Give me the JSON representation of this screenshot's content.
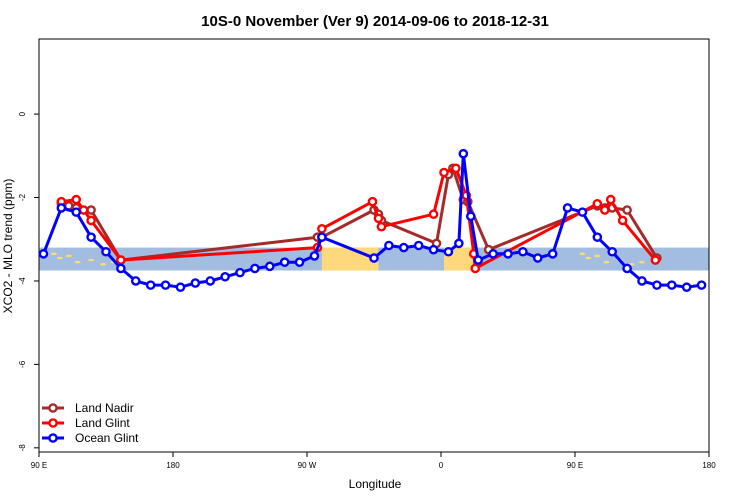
{
  "chart_data": {
    "type": "line",
    "title": "10S-0 November (Ver 9)   2014-09-06 to 2018-12-31",
    "xlabel": "Longitude",
    "ylabel": "XCO2 - MLO trend (ppm)",
    "x_ticks": [
      {
        "value": 90,
        "label": "90 E"
      },
      {
        "value": 180,
        "label": "180"
      },
      {
        "value": 270,
        "label": "90 W"
      },
      {
        "value": 360,
        "label": "0"
      },
      {
        "value": 450,
        "label": "90 E"
      },
      {
        "value": 540,
        "label": "180"
      }
    ],
    "y_ticks": [
      {
        "value": 0,
        "label": "0"
      },
      {
        "value": -2,
        "label": "-2"
      },
      {
        "value": -4,
        "label": "-4"
      },
      {
        "value": -6,
        "label": "-6"
      },
      {
        "value": -8,
        "label": "-8"
      }
    ],
    "xlim": [
      90,
      540
    ],
    "ylim": [
      -8.1,
      1.8
    ],
    "background_band": {
      "ymin": -3.75,
      "ymax": -3.2,
      "ocean_color": "#a3bde0",
      "land_color": "#fdd97b"
    },
    "legend_position": "bottom-left",
    "series": [
      {
        "name": "Land Nadir",
        "color": "#a52a2a",
        "points": [
          [
            105,
            -2.15
          ],
          [
            110,
            -2.2
          ],
          [
            115,
            -2.25
          ],
          [
            125,
            -2.3
          ],
          [
            145,
            -3.5
          ],
          [
            277,
            -2.95
          ],
          [
            280,
            -2.95
          ],
          [
            315,
            -2.3
          ],
          [
            318,
            -2.4
          ],
          [
            320,
            -2.55
          ],
          [
            357,
            -3.1
          ],
          [
            365,
            -1.45
          ],
          [
            368,
            -1.3
          ],
          [
            375,
            -2.05
          ],
          [
            378,
            -2.1
          ],
          [
            392,
            -3.25
          ],
          [
            465,
            -2.2
          ],
          [
            470,
            -2.25
          ],
          [
            475,
            -2.25
          ],
          [
            485,
            -2.3
          ],
          [
            505,
            -3.45
          ]
        ]
      },
      {
        "name": "Land Glint",
        "color": "#ff0000",
        "points": [
          [
            105,
            -2.1
          ],
          [
            115,
            -2.05
          ],
          [
            120,
            -2.3
          ],
          [
            125,
            -2.55
          ],
          [
            145,
            -3.5
          ],
          [
            277,
            -3.2
          ],
          [
            280,
            -2.75
          ],
          [
            314,
            -2.1
          ],
          [
            318,
            -2.5
          ],
          [
            320,
            -2.7
          ],
          [
            355,
            -2.4
          ],
          [
            362,
            -1.4
          ],
          [
            370,
            -1.3
          ],
          [
            377,
            -1.95
          ],
          [
            382,
            -3.35
          ],
          [
            383,
            -3.7
          ],
          [
            465,
            -2.15
          ],
          [
            470,
            -2.3
          ],
          [
            474,
            -2.05
          ],
          [
            482,
            -2.55
          ],
          [
            504,
            -3.5
          ]
        ]
      },
      {
        "name": "Ocean Glint",
        "color": "#0000ff",
        "points": [
          [
            93,
            -3.35
          ],
          [
            105,
            -2.25
          ],
          [
            115,
            -2.35
          ],
          [
            125,
            -2.95
          ],
          [
            135,
            -3.3
          ],
          [
            145,
            -3.7
          ],
          [
            155,
            -4.0
          ],
          [
            165,
            -4.1
          ],
          [
            175,
            -4.1
          ],
          [
            185,
            -4.15
          ],
          [
            195,
            -4.05
          ],
          [
            205,
            -4.0
          ],
          [
            215,
            -3.9
          ],
          [
            225,
            -3.8
          ],
          [
            235,
            -3.7
          ],
          [
            245,
            -3.65
          ],
          [
            255,
            -3.55
          ],
          [
            265,
            -3.55
          ],
          [
            275,
            -3.4
          ],
          [
            280,
            -2.95
          ],
          [
            315,
            -3.45
          ],
          [
            325,
            -3.15
          ],
          [
            335,
            -3.2
          ],
          [
            345,
            -3.15
          ],
          [
            355,
            -3.25
          ],
          [
            365,
            -3.3
          ],
          [
            372,
            -3.1
          ],
          [
            375,
            -0.95
          ],
          [
            380,
            -2.45
          ],
          [
            385,
            -3.5
          ],
          [
            395,
            -3.35
          ],
          [
            405,
            -3.35
          ],
          [
            415,
            -3.3
          ],
          [
            425,
            -3.45
          ],
          [
            435,
            -3.35
          ],
          [
            445,
            -2.25
          ],
          [
            455,
            -2.35
          ],
          [
            465,
            -2.95
          ],
          [
            475,
            -3.3
          ],
          [
            485,
            -3.7
          ],
          [
            495,
            -4.0
          ],
          [
            505,
            -4.1
          ],
          [
            515,
            -4.1
          ],
          [
            525,
            -4.15
          ],
          [
            535,
            -4.1
          ]
        ]
      }
    ]
  }
}
